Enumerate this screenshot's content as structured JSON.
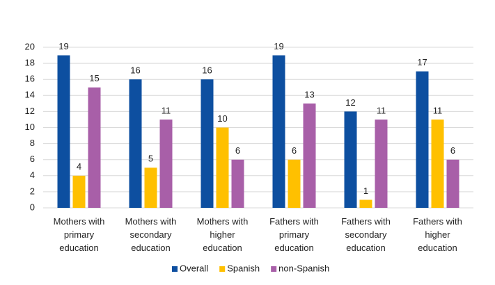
{
  "chart_data": {
    "type": "bar",
    "categories": [
      "Mothers with primary education",
      "Mothers with secondary education",
      "Mothers with higher education",
      "Fathers with primary education",
      "Fathers with secondary education",
      "Fathers with higher education"
    ],
    "series": [
      {
        "name": "Overall",
        "color": "#0d4fa0",
        "values": [
          19,
          16,
          16,
          19,
          12,
          17
        ]
      },
      {
        "name": "Spanish",
        "color": "#ffc000",
        "values": [
          4,
          5,
          10,
          6,
          1,
          11
        ]
      },
      {
        "name": "non-Spanish",
        "color": "#a85fa8",
        "values": [
          15,
          11,
          6,
          13,
          11,
          6
        ]
      }
    ],
    "ylim": [
      0,
      20
    ],
    "yticks": [
      0,
      2,
      4,
      6,
      8,
      10,
      12,
      14,
      16,
      18,
      20
    ],
    "grid": true,
    "legend": "bottom"
  }
}
